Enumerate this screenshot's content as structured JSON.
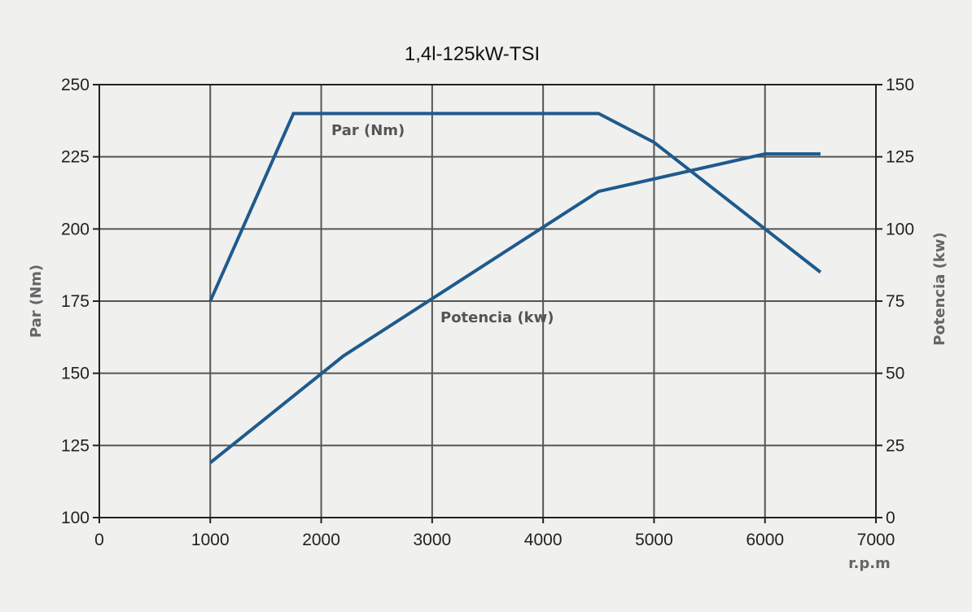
{
  "chart_data": {
    "type": "line",
    "title": "1,4l-125kW-TSI",
    "xlabel": "r.p.m",
    "ylabel_left": "Par (Nm)",
    "ylabel_right": "Potencia (kw)",
    "xlim": [
      0,
      7000
    ],
    "ylim_left": [
      100,
      250
    ],
    "ylim_right": [
      0,
      150
    ],
    "x_ticks": [
      "0",
      "1000",
      "2000",
      "3000",
      "4000",
      "5000",
      "6000",
      "7000"
    ],
    "y_left_ticks": [
      "100",
      "125",
      "150",
      "175",
      "200",
      "225",
      "250"
    ],
    "y_right_ticks": [
      "0",
      "25",
      "50",
      "75",
      "100",
      "125",
      "150"
    ],
    "grid": true,
    "series": [
      {
        "name": "Par (Nm)",
        "axis": "left",
        "color": "#1e5a8e",
        "x": [
          1000,
          1750,
          4500,
          5000,
          6000,
          6500
        ],
        "y": [
          175,
          240,
          240,
          230,
          200,
          185
        ]
      },
      {
        "name": "Potencia (kw)",
        "axis": "right",
        "color": "#1e5a8e",
        "x": [
          1000,
          2200,
          4500,
          6000,
          6500
        ],
        "y": [
          19,
          56,
          113,
          126,
          126
        ]
      }
    ]
  }
}
